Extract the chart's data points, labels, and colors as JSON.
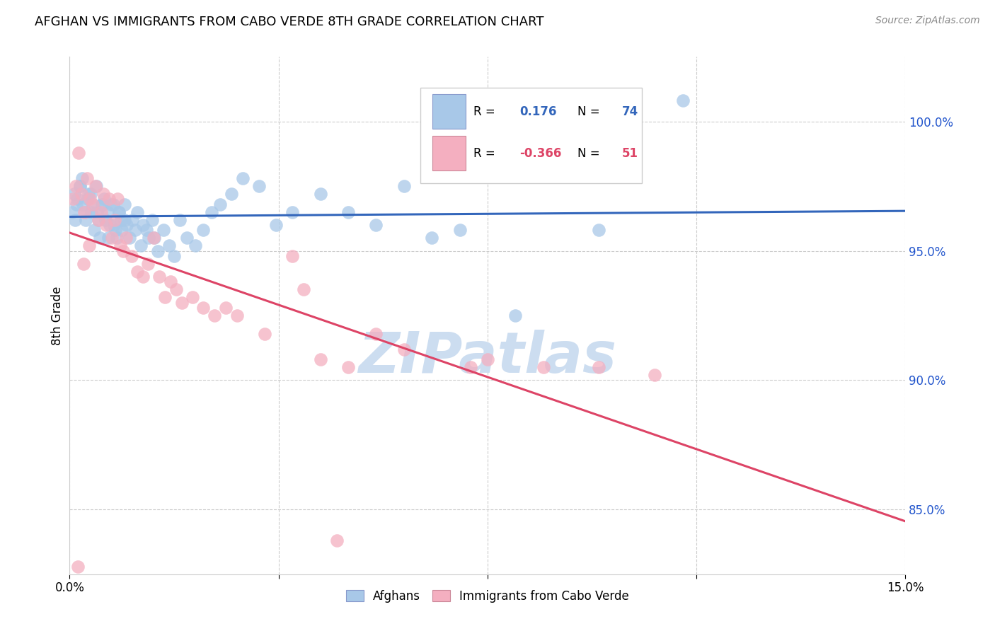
{
  "title": "AFGHAN VS IMMIGRANTS FROM CABO VERDE 8TH GRADE CORRELATION CHART",
  "source": "Source: ZipAtlas.com",
  "ylabel": "8th Grade",
  "xlim": [
    0.0,
    15.0
  ],
  "ylim": [
    82.5,
    102.5
  ],
  "yticks": [
    85.0,
    90.0,
    95.0,
    100.0
  ],
  "ytick_labels": [
    "85.0%",
    "90.0%",
    "95.0%",
    "100.0%"
  ],
  "blue_R": 0.176,
  "blue_N": 74,
  "pink_R": -0.366,
  "pink_N": 51,
  "blue_color": "#a8c8e8",
  "pink_color": "#f4afc0",
  "blue_line_color": "#3366bb",
  "pink_line_color": "#dd4466",
  "watermark_color": "#ccddf0",
  "blue_x": [
    0.08,
    0.12,
    0.18,
    0.22,
    0.28,
    0.32,
    0.38,
    0.42,
    0.48,
    0.52,
    0.58,
    0.62,
    0.68,
    0.72,
    0.78,
    0.82,
    0.88,
    0.92,
    0.98,
    1.02,
    1.08,
    1.12,
    1.18,
    1.22,
    1.28,
    1.32,
    1.38,
    1.42,
    1.48,
    1.52,
    1.58,
    1.68,
    1.78,
    1.88,
    1.98,
    2.1,
    2.25,
    2.4,
    2.55,
    2.7,
    2.9,
    3.1,
    3.4,
    3.7,
    4.0,
    4.5,
    5.0,
    5.5,
    6.0,
    6.5,
    7.0,
    8.0,
    9.5,
    11.0,
    0.05,
    0.09,
    0.14,
    0.19,
    0.24,
    0.29,
    0.34,
    0.39,
    0.44,
    0.49,
    0.54,
    0.59,
    0.64,
    0.69,
    0.74,
    0.79,
    0.84,
    0.89,
    0.94,
    0.99
  ],
  "blue_y": [
    97.2,
    96.8,
    97.5,
    97.8,
    96.5,
    97.0,
    97.2,
    96.8,
    97.5,
    96.2,
    96.8,
    97.0,
    96.5,
    96.0,
    96.8,
    95.8,
    96.5,
    96.2,
    96.8,
    96.0,
    95.5,
    96.2,
    95.8,
    96.5,
    95.2,
    96.0,
    95.8,
    95.5,
    96.2,
    95.5,
    95.0,
    95.8,
    95.2,
    94.8,
    96.2,
    95.5,
    95.2,
    95.8,
    96.5,
    96.8,
    97.2,
    97.8,
    97.5,
    96.0,
    96.5,
    97.2,
    96.5,
    96.0,
    97.5,
    95.5,
    95.8,
    92.5,
    95.8,
    100.8,
    96.5,
    96.2,
    97.0,
    97.5,
    96.8,
    96.2,
    97.2,
    96.5,
    95.8,
    96.5,
    95.5,
    96.8,
    96.2,
    95.5,
    96.8,
    96.0,
    95.5,
    96.5,
    95.8,
    96.2
  ],
  "pink_x": [
    0.06,
    0.11,
    0.16,
    0.21,
    0.26,
    0.31,
    0.36,
    0.41,
    0.46,
    0.51,
    0.56,
    0.61,
    0.66,
    0.71,
    0.76,
    0.81,
    0.86,
    0.91,
    0.96,
    1.01,
    1.11,
    1.21,
    1.31,
    1.41,
    1.51,
    1.61,
    1.71,
    1.81,
    1.91,
    2.01,
    2.2,
    2.4,
    2.6,
    2.8,
    3.0,
    3.5,
    4.0,
    4.5,
    5.0,
    5.5,
    6.0,
    7.5,
    8.5,
    9.5,
    10.5,
    4.2,
    7.2,
    4.8,
    0.15,
    0.25,
    0.35
  ],
  "pink_y": [
    97.0,
    97.5,
    98.8,
    97.2,
    96.5,
    97.8,
    97.0,
    96.8,
    97.5,
    96.2,
    96.5,
    97.2,
    96.0,
    97.0,
    95.5,
    96.2,
    97.0,
    95.2,
    95.0,
    95.5,
    94.8,
    94.2,
    94.0,
    94.5,
    95.5,
    94.0,
    93.2,
    93.8,
    93.5,
    93.0,
    93.2,
    92.8,
    92.5,
    92.8,
    92.5,
    91.8,
    94.8,
    90.8,
    90.5,
    91.8,
    91.2,
    90.8,
    90.5,
    90.5,
    90.2,
    93.5,
    90.5,
    83.8,
    82.8,
    94.5,
    95.2
  ]
}
